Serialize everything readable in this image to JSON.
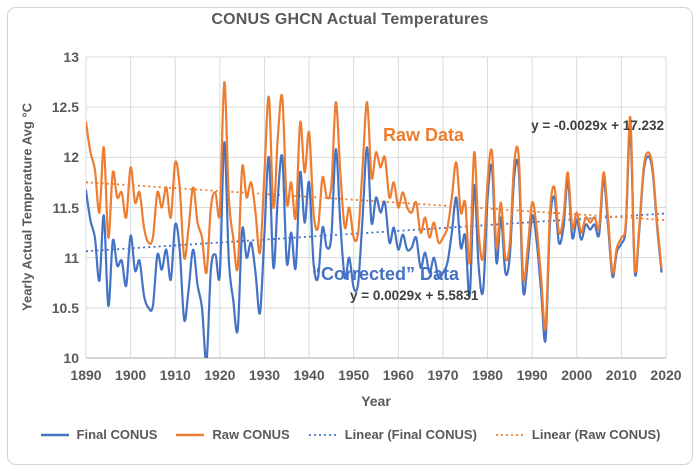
{
  "title": "CONUS GHCN Actual Temperatures",
  "y_axis": {
    "title": "Yearly Actual Temperature Avg °C",
    "ticks": [
      {
        "label": "13",
        "value": 13
      },
      {
        "label": "12.5",
        "value": 12.5
      },
      {
        "label": "12",
        "value": 12
      },
      {
        "label": "11.5",
        "value": 11.5
      },
      {
        "label": "11",
        "value": 11
      },
      {
        "label": "10.5",
        "value": 10.5
      },
      {
        "label": "10",
        "value": 10
      }
    ]
  },
  "x_axis": {
    "title": "Year",
    "ticks": [
      {
        "label": "1890",
        "value": 1890
      },
      {
        "label": "1900",
        "value": 1900
      },
      {
        "label": "1910",
        "value": 1910
      },
      {
        "label": "1920",
        "value": 1920
      },
      {
        "label": "1930",
        "value": 1930
      },
      {
        "label": "1940",
        "value": 1940
      },
      {
        "label": "1950",
        "value": 1950
      },
      {
        "label": "1960",
        "value": 1960
      },
      {
        "label": "1970",
        "value": 1970
      },
      {
        "label": "1980",
        "value": 1980
      },
      {
        "label": "1990",
        "value": 1990
      },
      {
        "label": "2000",
        "value": 2000
      },
      {
        "label": "2010",
        "value": 2010
      },
      {
        "label": "2020",
        "value": 2020
      }
    ]
  },
  "annotations": {
    "raw_label": "Raw Data",
    "raw_equation": "y = -0.0029x + 17.232",
    "corrected_label": "“Corrected” Data",
    "corrected_equation": "y = 0.0029x + 5.5831"
  },
  "legend": {
    "items": [
      {
        "label": "Final CONUS",
        "color": "#4472C4",
        "style": "solid"
      },
      {
        "label": "Raw CONUS",
        "color": "#ED7D31",
        "style": "solid"
      },
      {
        "label": "Linear (Final CONUS)",
        "color": "#4472C4",
        "style": "dotted"
      },
      {
        "label": "Linear (Raw CONUS)",
        "color": "#ED7D31",
        "style": "dotted"
      }
    ]
  },
  "colors": {
    "raw": "#ED7D31",
    "final": "#4472C4",
    "text": "#595959",
    "equation": "#3F3F3F",
    "gridline": "#D9D9D9",
    "axis": "#BFBFBF",
    "border": "#D4D4D4",
    "background": "#FFFFFF"
  },
  "chart_data": {
    "type": "line",
    "title": "CONUS GHCN Actual Temperatures",
    "xlabel": "Year",
    "ylabel": "Yearly Actual Temperature Avg °C",
    "xlim": [
      1890,
      2020
    ],
    "ylim": [
      10,
      13
    ],
    "grid": true,
    "legend_position": "bottom",
    "smoothed_lines": true,
    "x": [
      1890,
      1891,
      1892,
      1893,
      1894,
      1895,
      1896,
      1897,
      1898,
      1899,
      1900,
      1901,
      1902,
      1903,
      1904,
      1905,
      1906,
      1907,
      1908,
      1909,
      1910,
      1911,
      1912,
      1913,
      1914,
      1915,
      1916,
      1917,
      1918,
      1919,
      1920,
      1921,
      1922,
      1923,
      1924,
      1925,
      1926,
      1927,
      1928,
      1929,
      1930,
      1931,
      1932,
      1933,
      1934,
      1935,
      1936,
      1937,
      1938,
      1939,
      1940,
      1941,
      1942,
      1943,
      1944,
      1945,
      1946,
      1947,
      1948,
      1949,
      1950,
      1951,
      1952,
      1953,
      1954,
      1955,
      1956,
      1957,
      1958,
      1959,
      1960,
      1961,
      1962,
      1963,
      1964,
      1965,
      1966,
      1967,
      1968,
      1969,
      1970,
      1971,
      1972,
      1973,
      1974,
      1975,
      1976,
      1977,
      1978,
      1979,
      1980,
      1981,
      1982,
      1983,
      1984,
      1985,
      1986,
      1987,
      1988,
      1989,
      1990,
      1991,
      1992,
      1993,
      1994,
      1995,
      1996,
      1997,
      1998,
      1999,
      2000,
      2001,
      2002,
      2003,
      2004,
      2005,
      2006,
      2007,
      2008,
      2009,
      2010,
      2011,
      2012,
      2013,
      2014,
      2015,
      2016,
      2017,
      2018,
      2019
    ],
    "series": [
      {
        "name": "Final CONUS",
        "color": "#4472C4",
        "style": "solid",
        "values": [
          11.67,
          11.37,
          11.2,
          10.77,
          11.42,
          10.52,
          11.17,
          10.92,
          10.97,
          10.72,
          11.22,
          10.87,
          10.97,
          10.62,
          10.5,
          10.52,
          11.03,
          10.88,
          11.08,
          10.78,
          11.33,
          11.08,
          10.38,
          10.68,
          11.08,
          10.73,
          10.5,
          9.97,
          10.88,
          11.03,
          10.83,
          12.15,
          10.98,
          10.58,
          10.28,
          11.28,
          11.0,
          11.15,
          10.85,
          10.45,
          11.25,
          12.0,
          10.9,
          11.6,
          12.0,
          10.95,
          11.25,
          10.9,
          11.85,
          11.35,
          11.75,
          10.95,
          10.8,
          11.3,
          11.1,
          11.22,
          12.08,
          11.35,
          10.8,
          11.0,
          10.7,
          10.75,
          11.4,
          12.1,
          11.35,
          11.6,
          11.45,
          11.55,
          11.15,
          11.3,
          11.08,
          11.23,
          11.08,
          11.1,
          11.2,
          10.9,
          11.05,
          10.85,
          11.0,
          10.8,
          10.85,
          10.95,
          11.25,
          11.6,
          11.1,
          11.22,
          10.62,
          11.72,
          10.92,
          10.67,
          11.58,
          11.9,
          10.95,
          11.4,
          10.85,
          11.02,
          11.82,
          11.87,
          10.67,
          10.97,
          11.42,
          11.17,
          10.67,
          10.18,
          11.35,
          11.6,
          11.15,
          11.3,
          11.77,
          11.2,
          11.38,
          11.18,
          11.33,
          11.28,
          11.33,
          11.23,
          11.78,
          11.33,
          10.81,
          11.06,
          11.14,
          11.31,
          12.28,
          10.86,
          11.26,
          11.86,
          12.01,
          11.86,
          11.31,
          10.86
        ]
      },
      {
        "name": "Raw CONUS",
        "color": "#ED7D31",
        "style": "solid",
        "values": [
          12.35,
          12.05,
          11.88,
          11.45,
          12.1,
          11.2,
          11.85,
          11.6,
          11.65,
          11.4,
          11.9,
          11.55,
          11.65,
          11.3,
          11.15,
          11.2,
          11.65,
          11.5,
          11.7,
          11.4,
          11.95,
          11.7,
          11.0,
          11.3,
          11.7,
          11.35,
          11.2,
          10.85,
          11.5,
          11.65,
          11.45,
          12.75,
          11.6,
          11.2,
          10.9,
          11.9,
          11.6,
          11.75,
          11.45,
          11.05,
          11.85,
          12.6,
          11.5,
          12.2,
          12.6,
          11.55,
          11.75,
          11.4,
          12.35,
          11.85,
          12.25,
          11.45,
          11.3,
          11.8,
          11.6,
          11.72,
          12.55,
          11.85,
          11.3,
          11.5,
          11.2,
          11.25,
          11.9,
          12.55,
          11.8,
          12.05,
          11.9,
          12.0,
          11.6,
          11.75,
          11.5,
          11.65,
          11.5,
          11.45,
          11.55,
          11.25,
          11.4,
          11.2,
          11.35,
          11.15,
          11.2,
          11.3,
          11.6,
          11.95,
          11.45,
          11.55,
          10.95,
          12.05,
          11.25,
          11.0,
          11.75,
          12.05,
          11.1,
          11.55,
          11.0,
          11.15,
          11.95,
          12.0,
          10.8,
          11.1,
          11.55,
          11.3,
          10.8,
          10.3,
          11.45,
          11.7,
          11.25,
          11.4,
          11.85,
          11.3,
          11.45,
          11.25,
          11.4,
          11.35,
          11.4,
          11.3,
          11.85,
          11.4,
          10.85,
          11.1,
          11.2,
          11.35,
          12.4,
          10.9,
          11.3,
          11.9,
          12.05,
          11.9,
          11.35,
          10.9
        ]
      },
      {
        "name": "Linear (Final CONUS)",
        "color": "#4472C4",
        "style": "dotted",
        "trend": {
          "slope": 0.0029,
          "intercept": 5.5831
        }
      },
      {
        "name": "Linear (Raw CONUS)",
        "color": "#ED7D31",
        "style": "dotted",
        "trend": {
          "slope": -0.0029,
          "intercept": 17.232
        }
      }
    ]
  }
}
